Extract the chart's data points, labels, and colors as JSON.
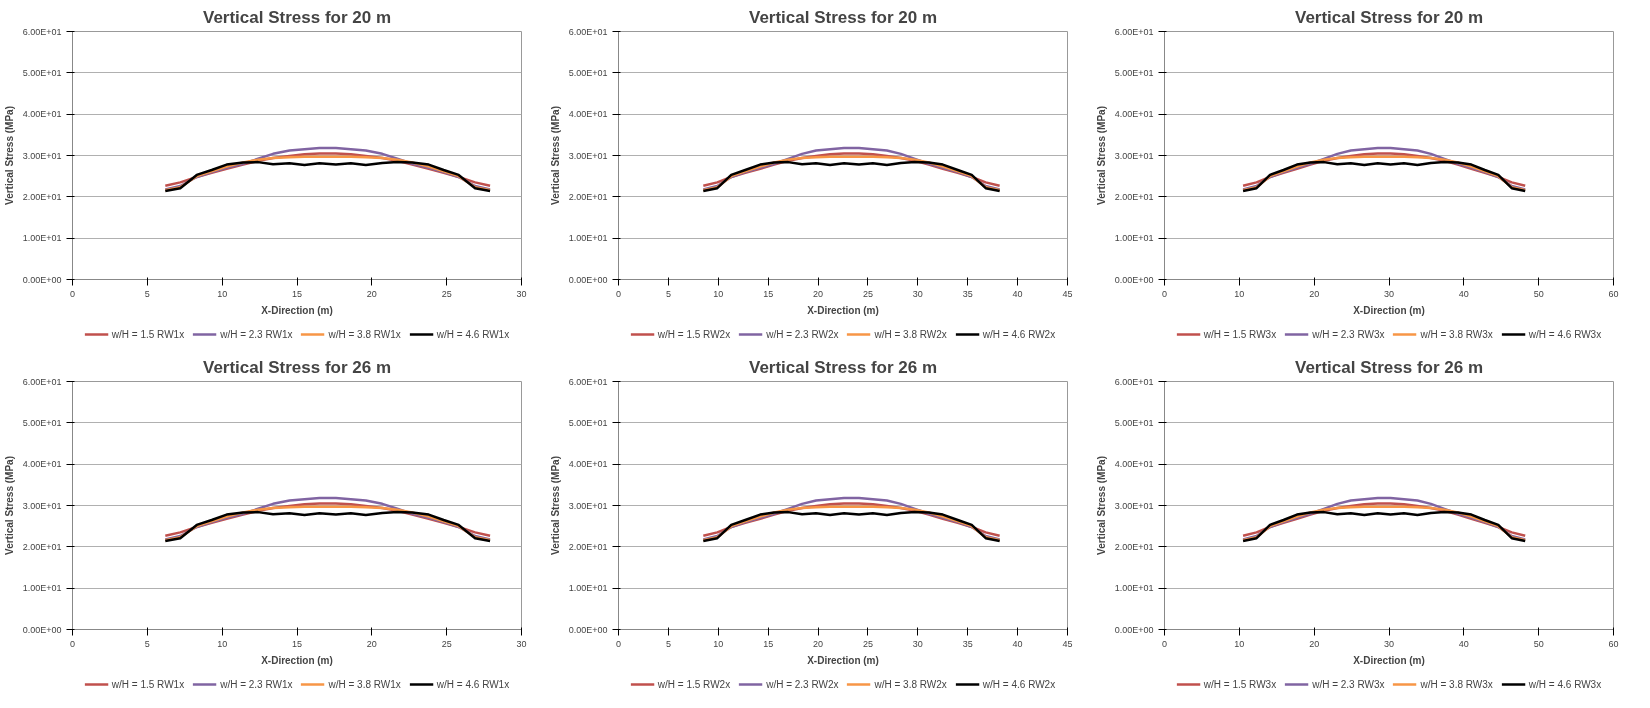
{
  "chart_data": [
    {
      "type": "line",
      "title": "Vertical Stress for 20 m",
      "xlabel": "X-Direction (m)",
      "ylabel": "Vertical Stress (MPa)",
      "legend": "bottom",
      "grid": "y",
      "xlim": [
        0,
        30
      ],
      "xticks": [
        0,
        5,
        10,
        15,
        20,
        25,
        30
      ],
      "ylim": [
        0,
        60
      ],
      "yticks": [
        {
          "value": 0,
          "label": "0.00E+00"
        },
        {
          "value": 10,
          "label": "1.00E+01"
        },
        {
          "value": 20,
          "label": "2.00E+01"
        },
        {
          "value": 30,
          "label": "3.00E+01"
        },
        {
          "value": 40,
          "label": "4.00E+01"
        },
        {
          "value": 50,
          "label": "5.00E+01"
        },
        {
          "value": 60,
          "label": "6.00E+01"
        }
      ],
      "x": [
        6.2,
        7.2,
        8.3,
        9.3,
        10.3,
        11.4,
        12.4,
        13.4,
        14.5,
        15.5,
        16.5,
        17.6,
        18.6,
        19.6,
        20.7,
        21.7,
        22.7,
        23.8,
        24.8,
        25.8,
        26.9,
        27.9
      ],
      "series": [
        {
          "name": "w/H = 1.5 RW1x",
          "color": "#c0504d",
          "values": [
            22.7,
            23.5,
            24.8,
            25.8,
            26.8,
            27.8,
            28.7,
            29.4,
            29.9,
            30.3,
            30.5,
            30.5,
            30.3,
            29.9,
            29.4,
            28.7,
            27.8,
            26.8,
            25.8,
            24.8,
            23.5,
            22.7
          ]
        },
        {
          "name": "w/H = 2.3 RW1x",
          "color": "#8064a2",
          "values": [
            21.8,
            22.6,
            24.8,
            26.0,
            27.0,
            28.0,
            29.2,
            30.4,
            31.2,
            31.5,
            31.8,
            31.8,
            31.5,
            31.2,
            30.4,
            29.2,
            28.0,
            27.0,
            26.0,
            24.8,
            22.6,
            21.8
          ]
        },
        {
          "name": "w/H = 3.8 RW1x",
          "color": "#f79646",
          "values": [
            21.6,
            22.3,
            25.0,
            26.2,
            27.3,
            28.3,
            29.0,
            29.4,
            29.6,
            29.7,
            29.7,
            29.7,
            29.7,
            29.6,
            29.4,
            29.0,
            28.3,
            27.3,
            26.2,
            25.0,
            22.3,
            21.6
          ]
        },
        {
          "name": "w/H = 4.6 RW1x",
          "color": "#000000",
          "values": [
            21.4,
            22.1,
            25.3,
            26.5,
            27.8,
            28.3,
            28.4,
            27.9,
            28.1,
            27.7,
            28.1,
            27.8,
            28.1,
            27.7,
            28.2,
            28.4,
            28.3,
            27.8,
            26.5,
            25.3,
            22.1,
            21.4
          ]
        }
      ]
    },
    {
      "type": "line",
      "title": "Vertical Stress for 20 m",
      "xlabel": "X-Direction (m)",
      "ylabel": "Vertical Stress (MPa)",
      "legend": "bottom",
      "grid": "y",
      "xlim": [
        0,
        45
      ],
      "xticks": [
        0,
        5,
        10,
        15,
        20,
        25,
        30,
        35,
        40,
        45
      ],
      "ylim": [
        0,
        60
      ],
      "yticks": [
        {
          "value": 0,
          "label": "0.00E+00"
        },
        {
          "value": 10,
          "label": "1.00E+01"
        },
        {
          "value": 20,
          "label": "2.00E+01"
        },
        {
          "value": 30,
          "label": "3.00E+01"
        },
        {
          "value": 40,
          "label": "4.00E+01"
        },
        {
          "value": 50,
          "label": "5.00E+01"
        },
        {
          "value": 60,
          "label": "6.00E+01"
        }
      ],
      "x": [
        8.5,
        9.9,
        11.3,
        12.7,
        14.2,
        15.6,
        17.0,
        18.4,
        19.8,
        21.2,
        22.6,
        24.1,
        25.5,
        26.9,
        28.3,
        29.7,
        31.1,
        32.5,
        34.0,
        35.4,
        36.8,
        38.2
      ],
      "series": [
        {
          "name": "w/H = 1.5 RW2x",
          "color": "#c0504d",
          "values": [
            22.7,
            23.5,
            24.8,
            25.8,
            26.8,
            27.8,
            28.7,
            29.4,
            29.9,
            30.3,
            30.5,
            30.5,
            30.3,
            29.9,
            29.4,
            28.7,
            27.8,
            26.8,
            25.8,
            24.8,
            23.5,
            22.7
          ]
        },
        {
          "name": "w/H = 2.3 RW2x",
          "color": "#8064a2",
          "values": [
            21.8,
            22.6,
            24.8,
            26.0,
            27.0,
            28.0,
            29.2,
            30.4,
            31.2,
            31.5,
            31.8,
            31.8,
            31.5,
            31.2,
            30.4,
            29.2,
            28.0,
            27.0,
            26.0,
            24.8,
            22.6,
            21.8
          ]
        },
        {
          "name": "w/H = 3.8 RW2x",
          "color": "#f79646",
          "values": [
            21.6,
            22.3,
            25.0,
            26.2,
            27.3,
            28.3,
            29.0,
            29.4,
            29.6,
            29.7,
            29.7,
            29.7,
            29.7,
            29.6,
            29.4,
            29.0,
            28.3,
            27.3,
            26.2,
            25.0,
            22.3,
            21.6
          ]
        },
        {
          "name": "w/H = 4.6 RW2x",
          "color": "#000000",
          "values": [
            21.4,
            22.1,
            25.3,
            26.5,
            27.8,
            28.3,
            28.4,
            27.9,
            28.1,
            27.7,
            28.1,
            27.8,
            28.1,
            27.7,
            28.2,
            28.4,
            28.3,
            27.8,
            26.5,
            25.3,
            22.1,
            21.4
          ]
        }
      ]
    },
    {
      "type": "line",
      "title": "Vertical Stress for 20 m",
      "xlabel": "X-Direction (m)",
      "ylabel": "Vertical Stress (MPa)",
      "legend": "bottom",
      "grid": "y",
      "xlim": [
        0,
        60
      ],
      "xticks": [
        0,
        10,
        20,
        30,
        40,
        50,
        60
      ],
      "ylim": [
        0,
        60
      ],
      "yticks": [
        {
          "value": 0,
          "label": "0.00E+00"
        },
        {
          "value": 10,
          "label": "1.00E+01"
        },
        {
          "value": 20,
          "label": "2.00E+01"
        },
        {
          "value": 30,
          "label": "3.00E+01"
        },
        {
          "value": 40,
          "label": "4.00E+01"
        },
        {
          "value": 50,
          "label": "5.00E+01"
        },
        {
          "value": 60,
          "label": "6.00E+01"
        }
      ],
      "x": [
        10.5,
        12.3,
        14.1,
        15.9,
        17.7,
        19.5,
        21.3,
        23.1,
        24.9,
        26.7,
        28.5,
        30.2,
        32.0,
        33.8,
        35.6,
        37.4,
        39.2,
        41.0,
        42.8,
        44.6,
        46.4,
        48.2
      ],
      "series": [
        {
          "name": "w/H = 1.5 RW3x",
          "color": "#c0504d",
          "values": [
            22.7,
            23.5,
            24.8,
            25.8,
            26.8,
            27.8,
            28.7,
            29.4,
            29.9,
            30.3,
            30.5,
            30.5,
            30.3,
            29.9,
            29.4,
            28.7,
            27.8,
            26.8,
            25.8,
            24.8,
            23.5,
            22.7
          ]
        },
        {
          "name": "w/H = 2.3 RW3x",
          "color": "#8064a2",
          "values": [
            21.8,
            22.6,
            24.8,
            26.0,
            27.0,
            28.0,
            29.2,
            30.4,
            31.2,
            31.5,
            31.8,
            31.8,
            31.5,
            31.2,
            30.4,
            29.2,
            28.0,
            27.0,
            26.0,
            24.8,
            22.6,
            21.8
          ]
        },
        {
          "name": "w/H = 3.8 RW3x",
          "color": "#f79646",
          "values": [
            21.6,
            22.3,
            25.0,
            26.2,
            27.3,
            28.3,
            29.0,
            29.4,
            29.6,
            29.7,
            29.7,
            29.7,
            29.7,
            29.6,
            29.4,
            29.0,
            28.3,
            27.3,
            26.2,
            25.0,
            22.3,
            21.6
          ]
        },
        {
          "name": "w/H = 4.6 RW3x",
          "color": "#000000",
          "values": [
            21.4,
            22.1,
            25.3,
            26.5,
            27.8,
            28.3,
            28.4,
            27.9,
            28.1,
            27.7,
            28.1,
            27.8,
            28.1,
            27.7,
            28.2,
            28.4,
            28.3,
            27.8,
            26.5,
            25.3,
            22.1,
            21.4
          ]
        }
      ]
    },
    {
      "type": "line",
      "title": "Vertical Stress for 26 m",
      "xlabel": "X-Direction (m)",
      "ylabel": "Vertical Stress (MPa)",
      "legend": "bottom",
      "grid": "y",
      "xlim": [
        0,
        30
      ],
      "xticks": [
        0,
        5,
        10,
        15,
        20,
        25,
        30
      ],
      "ylim": [
        0,
        60
      ],
      "yticks": [
        {
          "value": 0,
          "label": "0.00E+00"
        },
        {
          "value": 10,
          "label": "1.00E+01"
        },
        {
          "value": 20,
          "label": "2.00E+01"
        },
        {
          "value": 30,
          "label": "3.00E+01"
        },
        {
          "value": 40,
          "label": "4.00E+01"
        },
        {
          "value": 50,
          "label": "5.00E+01"
        },
        {
          "value": 60,
          "label": "6.00E+01"
        }
      ],
      "x": [
        6.2,
        7.2,
        8.3,
        9.3,
        10.3,
        11.4,
        12.4,
        13.4,
        14.5,
        15.5,
        16.5,
        17.6,
        18.6,
        19.6,
        20.7,
        21.7,
        22.7,
        23.8,
        24.8,
        25.8,
        26.9,
        27.9
      ],
      "series": [
        {
          "name": "w/H = 1.5 RW1x",
          "color": "#c0504d",
          "values": [
            22.7,
            23.5,
            24.8,
            25.8,
            26.8,
            27.8,
            28.7,
            29.4,
            29.9,
            30.3,
            30.5,
            30.5,
            30.3,
            29.9,
            29.4,
            28.7,
            27.8,
            26.8,
            25.8,
            24.8,
            23.5,
            22.7
          ]
        },
        {
          "name": "w/H = 2.3 RW1x",
          "color": "#8064a2",
          "values": [
            21.8,
            22.6,
            24.8,
            26.0,
            27.0,
            28.0,
            29.2,
            30.4,
            31.2,
            31.5,
            31.8,
            31.8,
            31.5,
            31.2,
            30.4,
            29.2,
            28.0,
            27.0,
            26.0,
            24.8,
            22.6,
            21.8
          ]
        },
        {
          "name": "w/H = 3.8 RW1x",
          "color": "#f79646",
          "values": [
            21.6,
            22.3,
            25.0,
            26.2,
            27.3,
            28.3,
            29.0,
            29.4,
            29.6,
            29.7,
            29.7,
            29.7,
            29.7,
            29.6,
            29.4,
            29.0,
            28.3,
            27.3,
            26.2,
            25.0,
            22.3,
            21.6
          ]
        },
        {
          "name": "w/H = 4.6 RW1x",
          "color": "#000000",
          "values": [
            21.4,
            22.1,
            25.3,
            26.5,
            27.8,
            28.3,
            28.4,
            27.9,
            28.1,
            27.7,
            28.1,
            27.8,
            28.1,
            27.7,
            28.2,
            28.4,
            28.3,
            27.8,
            26.5,
            25.3,
            22.1,
            21.4
          ]
        }
      ]
    },
    {
      "type": "line",
      "title": "Vertical Stress for 26 m",
      "xlabel": "X-Direction (m)",
      "ylabel": "Vertical Stress (MPa)",
      "legend": "bottom",
      "grid": "y",
      "xlim": [
        0,
        45
      ],
      "xticks": [
        0,
        5,
        10,
        15,
        20,
        25,
        30,
        35,
        40,
        45
      ],
      "ylim": [
        0,
        60
      ],
      "yticks": [
        {
          "value": 0,
          "label": "0.00E+00"
        },
        {
          "value": 10,
          "label": "1.00E+01"
        },
        {
          "value": 20,
          "label": "2.00E+01"
        },
        {
          "value": 30,
          "label": "3.00E+01"
        },
        {
          "value": 40,
          "label": "4.00E+01"
        },
        {
          "value": 50,
          "label": "5.00E+01"
        },
        {
          "value": 60,
          "label": "6.00E+01"
        }
      ],
      "x": [
        8.5,
        9.9,
        11.3,
        12.7,
        14.2,
        15.6,
        17.0,
        18.4,
        19.8,
        21.2,
        22.6,
        24.1,
        25.5,
        26.9,
        28.3,
        29.7,
        31.1,
        32.5,
        34.0,
        35.4,
        36.8,
        38.2
      ],
      "series": [
        {
          "name": "w/H = 1.5 RW2x",
          "color": "#c0504d",
          "values": [
            22.7,
            23.5,
            24.8,
            25.8,
            26.8,
            27.8,
            28.7,
            29.4,
            29.9,
            30.3,
            30.5,
            30.5,
            30.3,
            29.9,
            29.4,
            28.7,
            27.8,
            26.8,
            25.8,
            24.8,
            23.5,
            22.7
          ]
        },
        {
          "name": "w/H = 2.3 RW2x",
          "color": "#8064a2",
          "values": [
            21.8,
            22.6,
            24.8,
            26.0,
            27.0,
            28.0,
            29.2,
            30.4,
            31.2,
            31.5,
            31.8,
            31.8,
            31.5,
            31.2,
            30.4,
            29.2,
            28.0,
            27.0,
            26.0,
            24.8,
            22.6,
            21.8
          ]
        },
        {
          "name": "w/H = 3.8 RW2x",
          "color": "#f79646",
          "values": [
            21.6,
            22.3,
            25.0,
            26.2,
            27.3,
            28.3,
            29.0,
            29.4,
            29.6,
            29.7,
            29.7,
            29.7,
            29.7,
            29.6,
            29.4,
            29.0,
            28.3,
            27.3,
            26.2,
            25.0,
            22.3,
            21.6
          ]
        },
        {
          "name": "w/H = 4.6 RW2x",
          "color": "#000000",
          "values": [
            21.4,
            22.1,
            25.3,
            26.5,
            27.8,
            28.3,
            28.4,
            27.9,
            28.1,
            27.7,
            28.1,
            27.8,
            28.1,
            27.7,
            28.2,
            28.4,
            28.3,
            27.8,
            26.5,
            25.3,
            22.1,
            21.4
          ]
        }
      ]
    },
    {
      "type": "line",
      "title": "Vertical Stress for 26 m",
      "xlabel": "X-Direction (m)",
      "ylabel": "Vertical Stress (MPa)",
      "legend": "bottom",
      "grid": "y",
      "xlim": [
        0,
        60
      ],
      "xticks": [
        0,
        10,
        20,
        30,
        40,
        50,
        60
      ],
      "ylim": [
        0,
        60
      ],
      "yticks": [
        {
          "value": 0,
          "label": "0.00E+00"
        },
        {
          "value": 10,
          "label": "1.00E+01"
        },
        {
          "value": 20,
          "label": "2.00E+01"
        },
        {
          "value": 30,
          "label": "3.00E+01"
        },
        {
          "value": 40,
          "label": "4.00E+01"
        },
        {
          "value": 50,
          "label": "5.00E+01"
        },
        {
          "value": 60,
          "label": "6.00E+01"
        }
      ],
      "x": [
        10.5,
        12.3,
        14.1,
        15.9,
        17.7,
        19.5,
        21.3,
        23.1,
        24.9,
        26.7,
        28.5,
        30.2,
        32.0,
        33.8,
        35.6,
        37.4,
        39.2,
        41.0,
        42.8,
        44.6,
        46.4,
        48.2
      ],
      "series": [
        {
          "name": "w/H = 1.5 RW3x",
          "color": "#c0504d",
          "values": [
            22.7,
            23.5,
            24.8,
            25.8,
            26.8,
            27.8,
            28.7,
            29.4,
            29.9,
            30.3,
            30.5,
            30.5,
            30.3,
            29.9,
            29.4,
            28.7,
            27.8,
            26.8,
            25.8,
            24.8,
            23.5,
            22.7
          ]
        },
        {
          "name": "w/H = 2.3 RW3x",
          "color": "#8064a2",
          "values": [
            21.8,
            22.6,
            24.8,
            26.0,
            27.0,
            28.0,
            29.2,
            30.4,
            31.2,
            31.5,
            31.8,
            31.8,
            31.5,
            31.2,
            30.4,
            29.2,
            28.0,
            27.0,
            26.0,
            24.8,
            22.6,
            21.8
          ]
        },
        {
          "name": "w/H = 3.8 RW3x",
          "color": "#f79646",
          "values": [
            21.6,
            22.3,
            25.0,
            26.2,
            27.3,
            28.3,
            29.0,
            29.4,
            29.6,
            29.7,
            29.7,
            29.7,
            29.7,
            29.6,
            29.4,
            29.0,
            28.3,
            27.3,
            26.2,
            25.0,
            22.3,
            21.6
          ]
        },
        {
          "name": "w/H = 4.6 RW3x",
          "color": "#000000",
          "values": [
            21.4,
            22.1,
            25.3,
            26.5,
            27.8,
            28.3,
            28.4,
            27.9,
            28.1,
            27.7,
            28.1,
            27.8,
            28.1,
            27.7,
            28.2,
            28.4,
            28.3,
            27.8,
            26.5,
            25.3,
            22.1,
            21.4
          ]
        }
      ]
    }
  ]
}
